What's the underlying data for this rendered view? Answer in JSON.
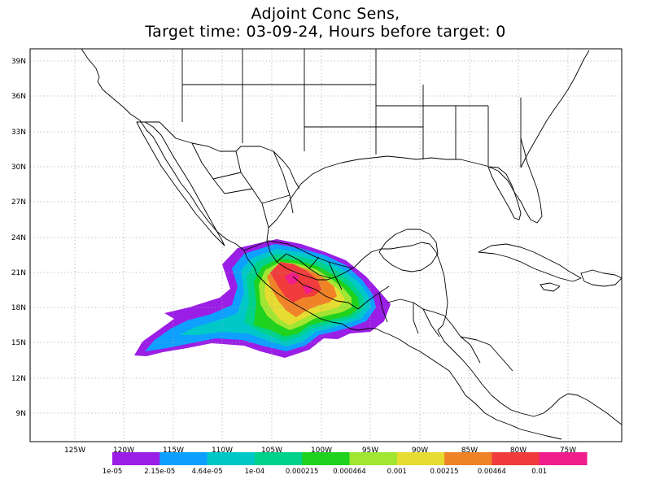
{
  "title": {
    "line1": "Adjoint Conc Sens,",
    "line2": "Target time: 03-09-24, Hours before target: 0"
  },
  "lat_ticks": [
    "39N",
    "36N",
    "33N",
    "30N",
    "27N",
    "24N",
    "21N",
    "18N",
    "15N",
    "12N",
    "9N"
  ],
  "lon_ticks": [
    "125W",
    "120W",
    "115W",
    "110W",
    "105W",
    "100W",
    "95W",
    "90W",
    "85W",
    "80W",
    "75W"
  ],
  "colorbar": {
    "colors": [
      "#9b1ee6",
      "#0ea0ff",
      "#00c8c8",
      "#00d28c",
      "#1ed21e",
      "#a0e632",
      "#e6dc32",
      "#f08228",
      "#f03c3c",
      "#f01e8c"
    ],
    "labels": [
      "1e-05",
      "2.15e-05",
      "4.64e-05",
      "1e-04",
      "0.000215",
      "0.000464",
      "0.001",
      "0.00215",
      "0.00464",
      "0.01"
    ]
  },
  "map_colors": {
    "frame": "#000000",
    "gridline": "#a0a0a0",
    "coastline": "#000000"
  }
}
